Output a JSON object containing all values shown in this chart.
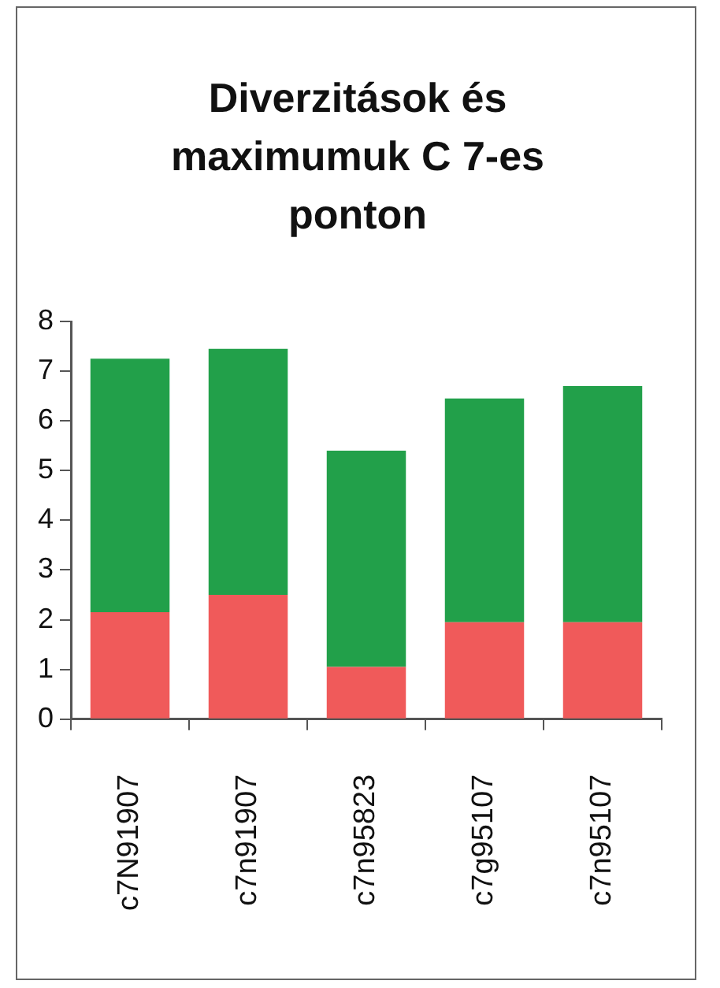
{
  "chart_data": {
    "type": "bar",
    "title": "Diverzitások és maximumuk C 7-es ponton",
    "categories": [
      "c7N91907",
      "c7n91907",
      "c7n95823",
      "c7g95107",
      "c7n95107"
    ],
    "series": [
      {
        "color": "#f05a5a",
        "values": [
          2.15,
          2.5,
          1.05,
          1.95,
          1.95
        ]
      },
      {
        "color": "#22a04a",
        "values": [
          5.1,
          4.95,
          4.35,
          4.5,
          4.75
        ]
      }
    ],
    "stacked": true,
    "ylim": [
      0,
      8
    ],
    "yticks": [
      0,
      1,
      2,
      3,
      4,
      5,
      6,
      7,
      8
    ]
  }
}
